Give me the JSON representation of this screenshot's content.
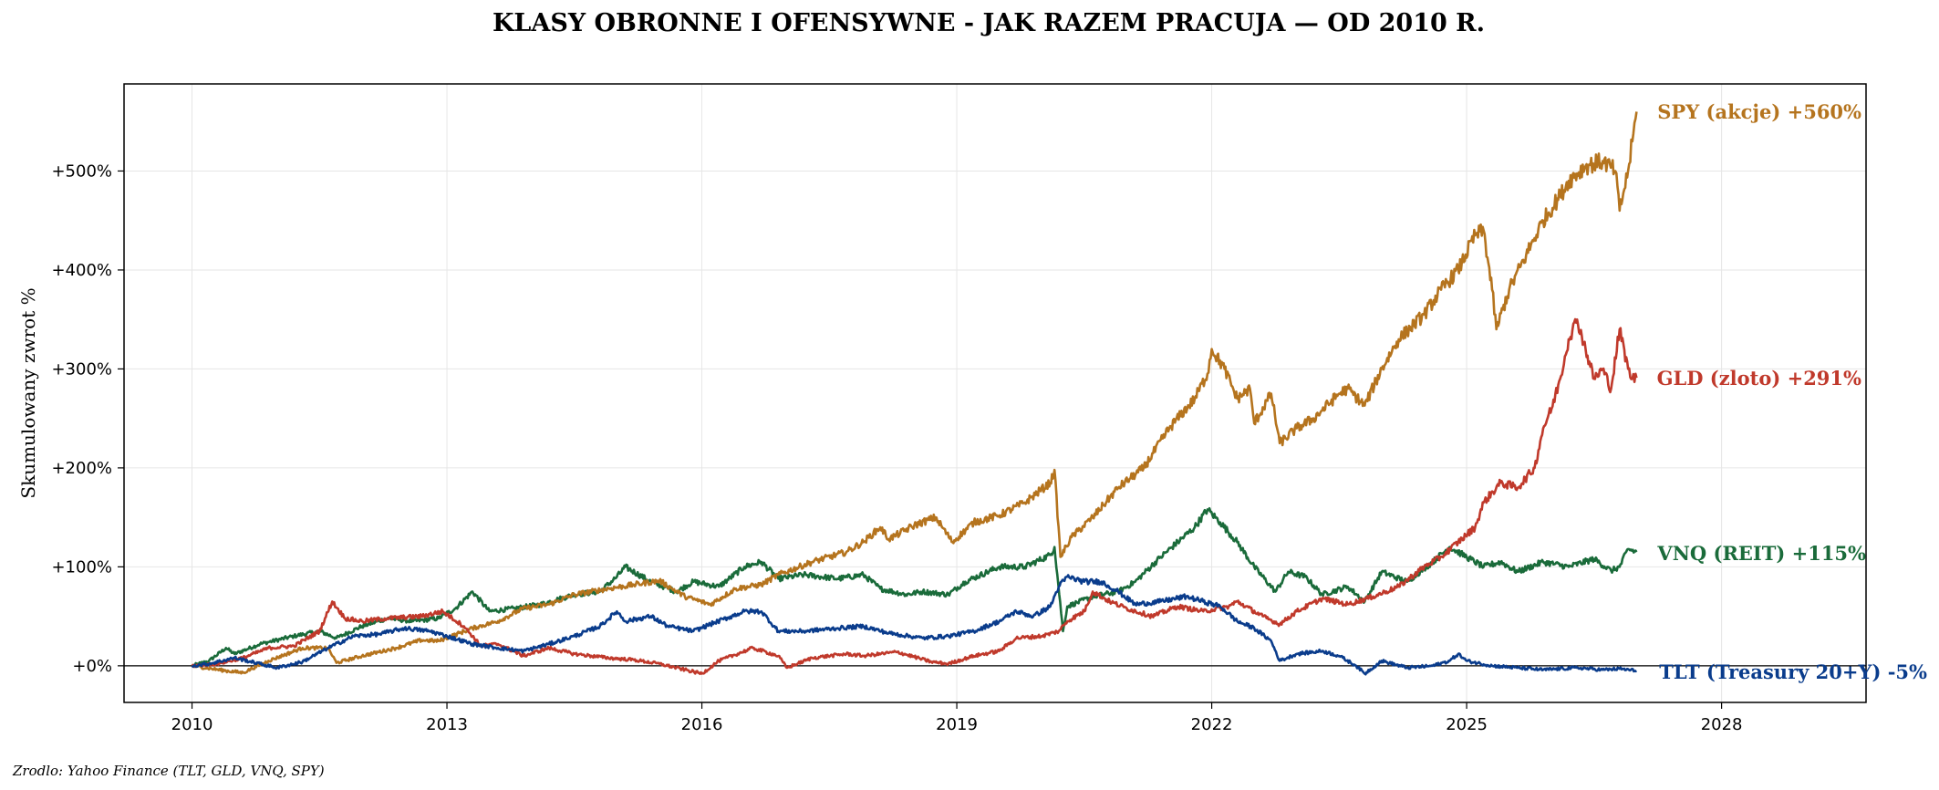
{
  "chart_data": {
    "type": "line",
    "title": "KLASY OBRONNE I OFENSYWNE - JAK RAZEM PRACUJA — OD 2010 R.",
    "ylabel": "Skumulowany zwrot %",
    "xlabel": "",
    "xlim": [
      2009.2,
      2029.7
    ],
    "ylim": [
      -37,
      588
    ],
    "x_ticks": [
      2010,
      2013,
      2016,
      2019,
      2022,
      2025,
      2028
    ],
    "x_tick_labels": [
      "2010",
      "2013",
      "2016",
      "2019",
      "2022",
      "2025",
      "2028"
    ],
    "y_ticks": [
      0,
      100,
      200,
      300,
      400,
      500
    ],
    "y_tick_labels": [
      "+0%",
      "+100%",
      "+200%",
      "+300%",
      "+400%",
      "+500%"
    ],
    "grid": true,
    "zero_line": true,
    "source": "Zrodlo: Yahoo Finance (TLT, GLD, VNQ, SPY)",
    "series": [
      {
        "name": "SPY (akcje)",
        "end_label": "SPY (akcje)  +560%",
        "color": "#B5741E",
        "points": [
          [
            2010.0,
            0
          ],
          [
            2010.4,
            -5
          ],
          [
            2010.6,
            -7
          ],
          [
            2010.9,
            5
          ],
          [
            2011.3,
            18
          ],
          [
            2011.6,
            18
          ],
          [
            2011.7,
            3
          ],
          [
            2012.0,
            10
          ],
          [
            2012.4,
            18
          ],
          [
            2012.7,
            26
          ],
          [
            2012.9,
            25
          ],
          [
            2013.3,
            38
          ],
          [
            2013.6,
            45
          ],
          [
            2013.9,
            58
          ],
          [
            2014.2,
            62
          ],
          [
            2014.5,
            72
          ],
          [
            2014.9,
            78
          ],
          [
            2015.2,
            82
          ],
          [
            2015.5,
            86
          ],
          [
            2015.65,
            78
          ],
          [
            2015.8,
            70
          ],
          [
            2016.1,
            62
          ],
          [
            2016.4,
            78
          ],
          [
            2016.7,
            82
          ],
          [
            2016.9,
            92
          ],
          [
            2017.3,
            105
          ],
          [
            2017.7,
            115
          ],
          [
            2017.9,
            125
          ],
          [
            2018.1,
            140
          ],
          [
            2018.2,
            128
          ],
          [
            2018.5,
            142
          ],
          [
            2018.75,
            150
          ],
          [
            2018.95,
            125
          ],
          [
            2019.2,
            145
          ],
          [
            2019.5,
            152
          ],
          [
            2019.8,
            165
          ],
          [
            2020.1,
            185
          ],
          [
            2020.15,
            198
          ],
          [
            2020.22,
            110
          ],
          [
            2020.35,
            130
          ],
          [
            2020.6,
            150
          ],
          [
            2020.9,
            180
          ],
          [
            2021.2,
            200
          ],
          [
            2021.5,
            240
          ],
          [
            2021.8,
            270
          ],
          [
            2021.95,
            295
          ],
          [
            2022.0,
            320
          ],
          [
            2022.15,
            300
          ],
          [
            2022.3,
            270
          ],
          [
            2022.45,
            280
          ],
          [
            2022.5,
            245
          ],
          [
            2022.7,
            275
          ],
          [
            2022.8,
            225
          ],
          [
            2023.0,
            240
          ],
          [
            2023.2,
            250
          ],
          [
            2023.5,
            275
          ],
          [
            2023.6,
            280
          ],
          [
            2023.8,
            263
          ],
          [
            2024.0,
            300
          ],
          [
            2024.2,
            330
          ],
          [
            2024.5,
            355
          ],
          [
            2024.7,
            380
          ],
          [
            2024.9,
            400
          ],
          [
            2025.1,
            435
          ],
          [
            2025.2,
            440
          ],
          [
            2025.3,
            380
          ],
          [
            2025.35,
            340
          ],
          [
            2025.5,
            380
          ],
          [
            2025.7,
            415
          ],
          [
            2025.9,
            450
          ],
          [
            2026.1,
            475
          ],
          [
            2026.2,
            490
          ],
          [
            2026.4,
            505
          ],
          [
            2026.6,
            510
          ],
          [
            2026.75,
            500
          ],
          [
            2026.8,
            460
          ],
          [
            2026.9,
            500
          ],
          [
            2026.95,
            530
          ],
          [
            2027.0,
            560
          ]
        ]
      },
      {
        "name": "GLD (zloto)",
        "end_label": "GLD (zloto)  +291%",
        "color": "#C0392B",
        "points": [
          [
            2010.0,
            0
          ],
          [
            2010.3,
            2
          ],
          [
            2010.6,
            8
          ],
          [
            2010.9,
            18
          ],
          [
            2011.2,
            20
          ],
          [
            2011.5,
            35
          ],
          [
            2011.65,
            65
          ],
          [
            2011.8,
            48
          ],
          [
            2012.0,
            45
          ],
          [
            2012.3,
            48
          ],
          [
            2012.7,
            50
          ],
          [
            2012.95,
            55
          ],
          [
            2013.2,
            40
          ],
          [
            2013.4,
            20
          ],
          [
            2013.6,
            22
          ],
          [
            2013.9,
            10
          ],
          [
            2014.2,
            18
          ],
          [
            2014.5,
            12
          ],
          [
            2014.9,
            8
          ],
          [
            2015.2,
            6
          ],
          [
            2015.5,
            2
          ],
          [
            2015.8,
            -4
          ],
          [
            2016.0,
            -8
          ],
          [
            2016.2,
            5
          ],
          [
            2016.6,
            18
          ],
          [
            2016.9,
            10
          ],
          [
            2017.0,
            -2
          ],
          [
            2017.3,
            8
          ],
          [
            2017.7,
            12
          ],
          [
            2017.9,
            10
          ],
          [
            2018.3,
            14
          ],
          [
            2018.7,
            4
          ],
          [
            2018.9,
            2
          ],
          [
            2019.2,
            10
          ],
          [
            2019.5,
            15
          ],
          [
            2019.7,
            28
          ],
          [
            2020.0,
            30
          ],
          [
            2020.2,
            35
          ],
          [
            2020.3,
            45
          ],
          [
            2020.5,
            55
          ],
          [
            2020.6,
            75
          ],
          [
            2020.8,
            65
          ],
          [
            2021.0,
            58
          ],
          [
            2021.3,
            50
          ],
          [
            2021.6,
            60
          ],
          [
            2021.9,
            55
          ],
          [
            2022.2,
            60
          ],
          [
            2022.3,
            65
          ],
          [
            2022.6,
            50
          ],
          [
            2022.8,
            42
          ],
          [
            2023.0,
            55
          ],
          [
            2023.3,
            68
          ],
          [
            2023.6,
            62
          ],
          [
            2023.9,
            70
          ],
          [
            2024.2,
            80
          ],
          [
            2024.5,
            100
          ],
          [
            2024.7,
            110
          ],
          [
            2024.9,
            125
          ],
          [
            2025.1,
            140
          ],
          [
            2025.2,
            165
          ],
          [
            2025.4,
            185
          ],
          [
            2025.6,
            180
          ],
          [
            2025.8,
            200
          ],
          [
            2025.9,
            240
          ],
          [
            2026.0,
            260
          ],
          [
            2026.1,
            290
          ],
          [
            2026.2,
            330
          ],
          [
            2026.3,
            350
          ],
          [
            2026.4,
            320
          ],
          [
            2026.5,
            290
          ],
          [
            2026.6,
            300
          ],
          [
            2026.7,
            280
          ],
          [
            2026.8,
            340
          ],
          [
            2026.9,
            300
          ],
          [
            2026.95,
            290
          ],
          [
            2027.0,
            291
          ]
        ]
      },
      {
        "name": "VNQ (REIT)",
        "end_label": "VNQ (REIT)  +115%",
        "color": "#1A6B3A",
        "points": [
          [
            2010.0,
            0
          ],
          [
            2010.2,
            5
          ],
          [
            2010.4,
            18
          ],
          [
            2010.5,
            12
          ],
          [
            2010.8,
            22
          ],
          [
            2011.2,
            30
          ],
          [
            2011.5,
            35
          ],
          [
            2011.7,
            28
          ],
          [
            2012.0,
            40
          ],
          [
            2012.3,
            48
          ],
          [
            2012.6,
            45
          ],
          [
            2012.9,
            48
          ],
          [
            2013.1,
            58
          ],
          [
            2013.3,
            75
          ],
          [
            2013.5,
            55
          ],
          [
            2013.8,
            58
          ],
          [
            2014.1,
            62
          ],
          [
            2014.5,
            72
          ],
          [
            2014.8,
            75
          ],
          [
            2015.0,
            90
          ],
          [
            2015.1,
            100
          ],
          [
            2015.4,
            85
          ],
          [
            2015.7,
            75
          ],
          [
            2015.9,
            85
          ],
          [
            2016.2,
            80
          ],
          [
            2016.5,
            100
          ],
          [
            2016.7,
            105
          ],
          [
            2016.9,
            88
          ],
          [
            2017.2,
            92
          ],
          [
            2017.6,
            88
          ],
          [
            2017.9,
            92
          ],
          [
            2018.1,
            78
          ],
          [
            2018.4,
            72
          ],
          [
            2018.6,
            75
          ],
          [
            2018.9,
            72
          ],
          [
            2019.1,
            85
          ],
          [
            2019.5,
            100
          ],
          [
            2019.8,
            100
          ],
          [
            2020.1,
            112
          ],
          [
            2020.15,
            120
          ],
          [
            2020.25,
            35
          ],
          [
            2020.3,
            60
          ],
          [
            2020.6,
            70
          ],
          [
            2020.9,
            75
          ],
          [
            2021.1,
            85
          ],
          [
            2021.4,
            110
          ],
          [
            2021.8,
            140
          ],
          [
            2021.95,
            158
          ],
          [
            2022.1,
            145
          ],
          [
            2022.3,
            125
          ],
          [
            2022.5,
            100
          ],
          [
            2022.75,
            75
          ],
          [
            2022.9,
            95
          ],
          [
            2023.1,
            90
          ],
          [
            2023.3,
            72
          ],
          [
            2023.6,
            80
          ],
          [
            2023.8,
            65
          ],
          [
            2024.0,
            95
          ],
          [
            2024.3,
            85
          ],
          [
            2024.6,
            105
          ],
          [
            2024.8,
            120
          ],
          [
            2025.0,
            110
          ],
          [
            2025.2,
            100
          ],
          [
            2025.4,
            105
          ],
          [
            2025.6,
            95
          ],
          [
            2025.9,
            105
          ],
          [
            2026.2,
            100
          ],
          [
            2026.5,
            108
          ],
          [
            2026.7,
            96
          ],
          [
            2026.8,
            100
          ],
          [
            2026.9,
            118
          ],
          [
            2027.0,
            115
          ]
        ]
      },
      {
        "name": "TLT (Treasury 20+Y)",
        "end_label": "TLT (Treasury 20+Y)  -5%",
        "color": "#0A3C8C",
        "points": [
          [
            2010.0,
            0
          ],
          [
            2010.2,
            2
          ],
          [
            2010.5,
            8
          ],
          [
            2010.8,
            2
          ],
          [
            2011.0,
            -2
          ],
          [
            2011.3,
            4
          ],
          [
            2011.6,
            18
          ],
          [
            2011.9,
            30
          ],
          [
            2012.2,
            32
          ],
          [
            2012.5,
            38
          ],
          [
            2012.8,
            35
          ],
          [
            2013.0,
            30
          ],
          [
            2013.3,
            22
          ],
          [
            2013.6,
            18
          ],
          [
            2013.9,
            15
          ],
          [
            2014.2,
            22
          ],
          [
            2014.5,
            30
          ],
          [
            2014.8,
            40
          ],
          [
            2015.0,
            55
          ],
          [
            2015.1,
            45
          ],
          [
            2015.4,
            50
          ],
          [
            2015.6,
            40
          ],
          [
            2015.9,
            35
          ],
          [
            2016.1,
            42
          ],
          [
            2016.5,
            55
          ],
          [
            2016.7,
            55
          ],
          [
            2016.9,
            35
          ],
          [
            2017.2,
            35
          ],
          [
            2017.6,
            38
          ],
          [
            2017.9,
            40
          ],
          [
            2018.2,
            33
          ],
          [
            2018.6,
            28
          ],
          [
            2018.9,
            30
          ],
          [
            2019.2,
            35
          ],
          [
            2019.5,
            45
          ],
          [
            2019.7,
            55
          ],
          [
            2019.9,
            50
          ],
          [
            2020.1,
            60
          ],
          [
            2020.2,
            80
          ],
          [
            2020.3,
            90
          ],
          [
            2020.5,
            85
          ],
          [
            2020.7,
            85
          ],
          [
            2020.9,
            75
          ],
          [
            2021.1,
            62
          ],
          [
            2021.4,
            65
          ],
          [
            2021.7,
            70
          ],
          [
            2021.9,
            65
          ],
          [
            2022.1,
            60
          ],
          [
            2022.3,
            45
          ],
          [
            2022.5,
            38
          ],
          [
            2022.7,
            25
          ],
          [
            2022.8,
            5
          ],
          [
            2023.0,
            12
          ],
          [
            2023.3,
            15
          ],
          [
            2023.5,
            10
          ],
          [
            2023.7,
            0
          ],
          [
            2023.8,
            -8
          ],
          [
            2024.0,
            5
          ],
          [
            2024.3,
            -2
          ],
          [
            2024.6,
            0
          ],
          [
            2024.8,
            5
          ],
          [
            2024.9,
            12
          ],
          [
            2025.0,
            5
          ],
          [
            2025.3,
            0
          ],
          [
            2025.6,
            -2
          ],
          [
            2025.9,
            -4
          ],
          [
            2026.3,
            -2
          ],
          [
            2026.6,
            -4
          ],
          [
            2026.8,
            -3
          ],
          [
            2027.0,
            -5
          ]
        ]
      }
    ]
  }
}
